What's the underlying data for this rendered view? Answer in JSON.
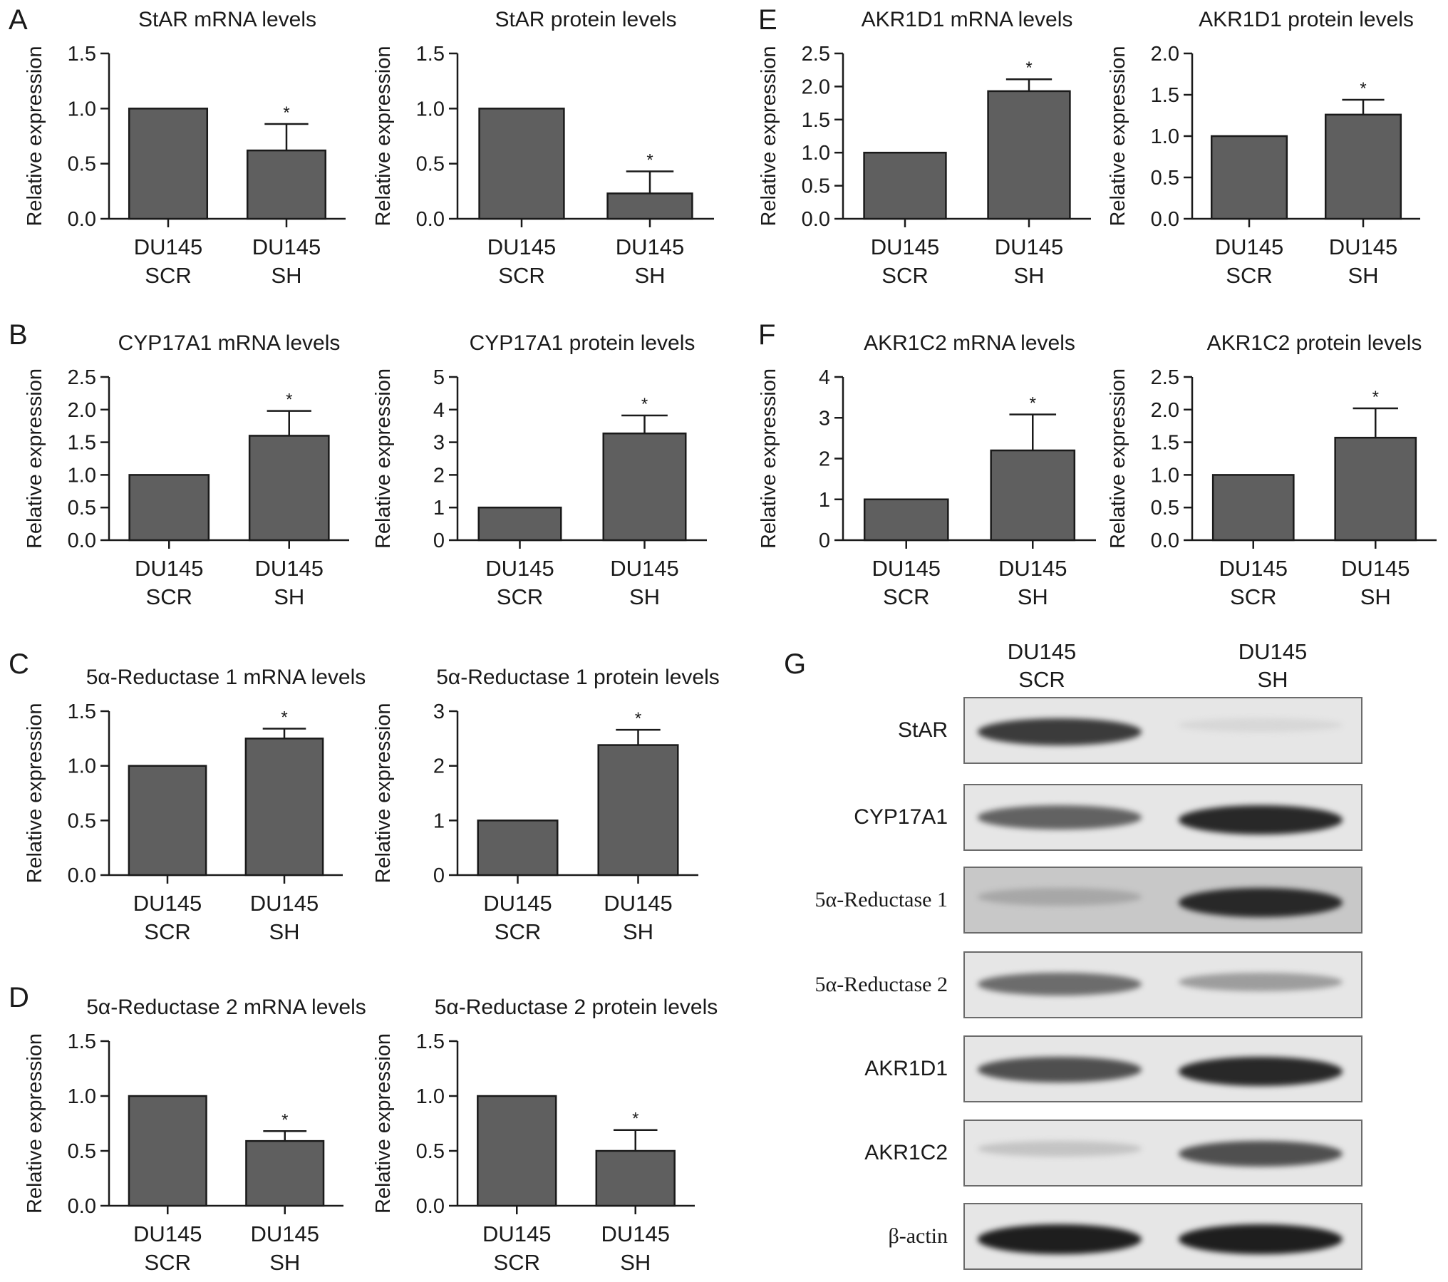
{
  "panels": {
    "A": "A",
    "B": "B",
    "C": "C",
    "D": "D",
    "E": "E",
    "F": "F",
    "G": "G"
  },
  "colors": {
    "bar_fill": "#5f5f5f",
    "axis": "#1a1a1a",
    "background": "#ffffff"
  },
  "chart_data": [
    {
      "id": "A-mrna",
      "type": "bar",
      "title": "StAR mRNA levels",
      "ylabel": "Relative expression",
      "categories": [
        "DU145\nSCR",
        "DU145\nSH"
      ],
      "values": [
        1.0,
        0.62
      ],
      "errors": [
        0,
        0.24
      ],
      "significance": [
        "",
        "*"
      ],
      "ylim": [
        0,
        1.5
      ],
      "yticks": [
        "0.0",
        "0.5",
        "1.0",
        "1.5"
      ],
      "ytick_values": [
        0,
        0.5,
        1.0,
        1.5
      ]
    },
    {
      "id": "A-protein",
      "type": "bar",
      "title": "StAR protein levels",
      "ylabel": "Relative expression",
      "categories": [
        "DU145\nSCR",
        "DU145\nSH"
      ],
      "values": [
        1.0,
        0.23
      ],
      "errors": [
        0,
        0.2
      ],
      "significance": [
        "",
        "*"
      ],
      "ylim": [
        0,
        1.5
      ],
      "yticks": [
        "0.0",
        "0.5",
        "1.0",
        "1.5"
      ],
      "ytick_values": [
        0,
        0.5,
        1.0,
        1.5
      ]
    },
    {
      "id": "B-mrna",
      "type": "bar",
      "title": "CYP17A1 mRNA levels",
      "ylabel": "Relative expression",
      "categories": [
        "DU145\nSCR",
        "DU145\nSH"
      ],
      "values": [
        1.0,
        1.6
      ],
      "errors": [
        0,
        0.38
      ],
      "significance": [
        "",
        "*"
      ],
      "ylim": [
        0,
        2.5
      ],
      "yticks": [
        "0.0",
        "0.5",
        "1.0",
        "1.5",
        "2.0",
        "2.5"
      ],
      "ytick_values": [
        0,
        0.5,
        1.0,
        1.5,
        2.0,
        2.5
      ]
    },
    {
      "id": "B-protein",
      "type": "bar",
      "title": "CYP17A1 protein levels",
      "ylabel": "Relative expression",
      "categories": [
        "DU145\nSCR",
        "DU145\nSH"
      ],
      "values": [
        1.0,
        3.27
      ],
      "errors": [
        0,
        0.55
      ],
      "significance": [
        "",
        "*"
      ],
      "ylim": [
        0,
        5
      ],
      "yticks": [
        "0",
        "1",
        "2",
        "3",
        "4",
        "5"
      ],
      "ytick_values": [
        0,
        1,
        2,
        3,
        4,
        5
      ]
    },
    {
      "id": "C-mrna",
      "type": "bar",
      "title": "5α-Reductase 1 mRNA levels",
      "ylabel": "Relative expression",
      "categories": [
        "DU145\nSCR",
        "DU145\nSH"
      ],
      "values": [
        1.0,
        1.25
      ],
      "errors": [
        0,
        0.09
      ],
      "significance": [
        "",
        "*"
      ],
      "ylim": [
        0,
        1.5
      ],
      "yticks": [
        "0.0",
        "0.5",
        "1.0",
        "1.5"
      ],
      "ytick_values": [
        0,
        0.5,
        1.0,
        1.5
      ]
    },
    {
      "id": "C-protein",
      "type": "bar",
      "title": "5α-Reductase 1 protein levels",
      "ylabel": "Relative expression",
      "categories": [
        "DU145\nSCR",
        "DU145\nSH"
      ],
      "values": [
        1.0,
        2.38
      ],
      "errors": [
        0,
        0.28
      ],
      "significance": [
        "",
        "*"
      ],
      "ylim": [
        0,
        3
      ],
      "yticks": [
        "0",
        "1",
        "2",
        "3"
      ],
      "ytick_values": [
        0,
        1,
        2,
        3
      ]
    },
    {
      "id": "D-mrna",
      "type": "bar",
      "title": "5α-Reductase 2 mRNA levels",
      "ylabel": "Relative expression",
      "categories": [
        "DU145\nSCR",
        "DU145\nSH"
      ],
      "values": [
        1.0,
        0.59
      ],
      "errors": [
        0,
        0.09
      ],
      "significance": [
        "",
        "*"
      ],
      "ylim": [
        0,
        1.5
      ],
      "yticks": [
        "0.0",
        "0.5",
        "1.0",
        "1.5"
      ],
      "ytick_values": [
        0,
        0.5,
        1.0,
        1.5
      ]
    },
    {
      "id": "D-protein",
      "type": "bar",
      "title": "5α-Reductase 2 protein levels",
      "ylabel": "Relative expression",
      "categories": [
        "DU145\nSCR",
        "DU145\nSH"
      ],
      "values": [
        1.0,
        0.5
      ],
      "errors": [
        0,
        0.19
      ],
      "significance": [
        "",
        "*"
      ],
      "ylim": [
        0,
        1.5
      ],
      "yticks": [
        "0.0",
        "0.5",
        "1.0",
        "1.5"
      ],
      "ytick_values": [
        0,
        0.5,
        1.0,
        1.5
      ]
    },
    {
      "id": "E-mrna",
      "type": "bar",
      "title": "AKR1D1 mRNA levels",
      "ylabel": "Relative expression",
      "categories": [
        "DU145\nSCR",
        "DU145\nSH"
      ],
      "values": [
        1.0,
        1.93
      ],
      "errors": [
        0,
        0.18
      ],
      "significance": [
        "",
        "*"
      ],
      "ylim": [
        0,
        2.5
      ],
      "yticks": [
        "0.0",
        "0.5",
        "1.0",
        "1.5",
        "2.0",
        "2.5"
      ],
      "ytick_values": [
        0,
        0.5,
        1.0,
        1.5,
        2.0,
        2.5
      ]
    },
    {
      "id": "E-protein",
      "type": "bar",
      "title": "AKR1D1 protein levels",
      "ylabel": "Relative expression",
      "categories": [
        "DU145\nSCR",
        "DU145\nSH"
      ],
      "values": [
        1.0,
        1.26
      ],
      "errors": [
        0,
        0.18
      ],
      "significance": [
        "",
        "*"
      ],
      "ylim": [
        0,
        2.0
      ],
      "yticks": [
        "0.0",
        "0.5",
        "1.0",
        "1.5",
        "2.0"
      ],
      "ytick_values": [
        0,
        0.5,
        1.0,
        1.5,
        2.0
      ]
    },
    {
      "id": "F-mrna",
      "type": "bar",
      "title": "AKR1C2 mRNA levels",
      "ylabel": "Relative expression",
      "categories": [
        "DU145\nSCR",
        "DU145\nSH"
      ],
      "values": [
        1.0,
        2.2
      ],
      "errors": [
        0,
        0.88
      ],
      "significance": [
        "",
        "*"
      ],
      "ylim": [
        0,
        4
      ],
      "yticks": [
        "0",
        "1",
        "2",
        "3",
        "4"
      ],
      "ytick_values": [
        0,
        1,
        2,
        3,
        4
      ]
    },
    {
      "id": "F-protein",
      "type": "bar",
      "title": "AKR1C2 protein levels",
      "ylabel": "Relative expression",
      "categories": [
        "DU145\nSCR",
        "DU145\nSH"
      ],
      "values": [
        1.0,
        1.57
      ],
      "errors": [
        0,
        0.45
      ],
      "significance": [
        "",
        "*"
      ],
      "ylim": [
        0,
        2.5
      ],
      "yticks": [
        "0.0",
        "0.5",
        "1.0",
        "1.5",
        "2.0",
        "2.5"
      ],
      "ytick_values": [
        0,
        0.5,
        1.0,
        1.5,
        2.0,
        2.5
      ]
    }
  ],
  "western_blot": {
    "lanes": [
      {
        "line1": "DU145",
        "line2": "SCR"
      },
      {
        "line1": "DU145",
        "line2": "SH"
      }
    ],
    "rows": [
      {
        "label": "StAR",
        "scr_intensity": 0.85,
        "sh_intensity": 0.05
      },
      {
        "label": "CYP17A1",
        "scr_intensity": 0.65,
        "sh_intensity": 0.95
      },
      {
        "label": "5α-Reductase 1",
        "scr_intensity": 0.3,
        "sh_intensity": 0.95
      },
      {
        "label": "5α-Reductase 2",
        "scr_intensity": 0.6,
        "sh_intensity": 0.35
      },
      {
        "label": "AKR1D1",
        "scr_intensity": 0.75,
        "sh_intensity": 0.95
      },
      {
        "label": "AKR1C2",
        "scr_intensity": 0.15,
        "sh_intensity": 0.75
      },
      {
        "label": "β-actin",
        "scr_intensity": 1.0,
        "sh_intensity": 1.0
      }
    ]
  }
}
